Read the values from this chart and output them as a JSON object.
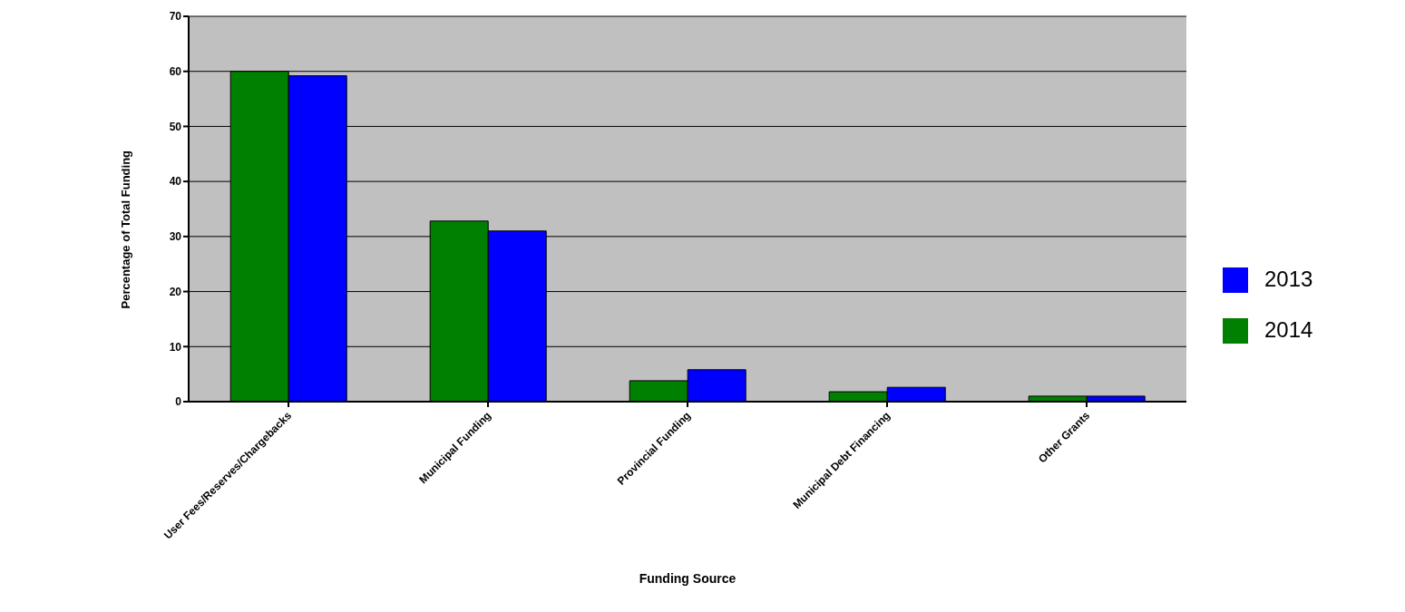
{
  "chart_data": {
    "type": "bar",
    "xlabel": "Funding Source",
    "ylabel": "Percentage of Total Funding",
    "categories": [
      "User Fees/Reserves/Chargebacks",
      "Municipal Funding",
      "Provincial Funding",
      "Municipal Debt Financing",
      "Other Grants"
    ],
    "series": [
      {
        "name": "2014",
        "color": "#008000",
        "values": [
          60,
          32.8,
          3.8,
          1.8,
          1.0
        ]
      },
      {
        "name": "2013",
        "color": "#0000ff",
        "values": [
          59.2,
          31.0,
          5.8,
          2.6,
          1.0
        ]
      }
    ],
    "ylim": [
      0,
      70
    ],
    "yticks": [
      0,
      10,
      20,
      30,
      40,
      50,
      60,
      70
    ],
    "grid": "y",
    "legend": "right"
  }
}
